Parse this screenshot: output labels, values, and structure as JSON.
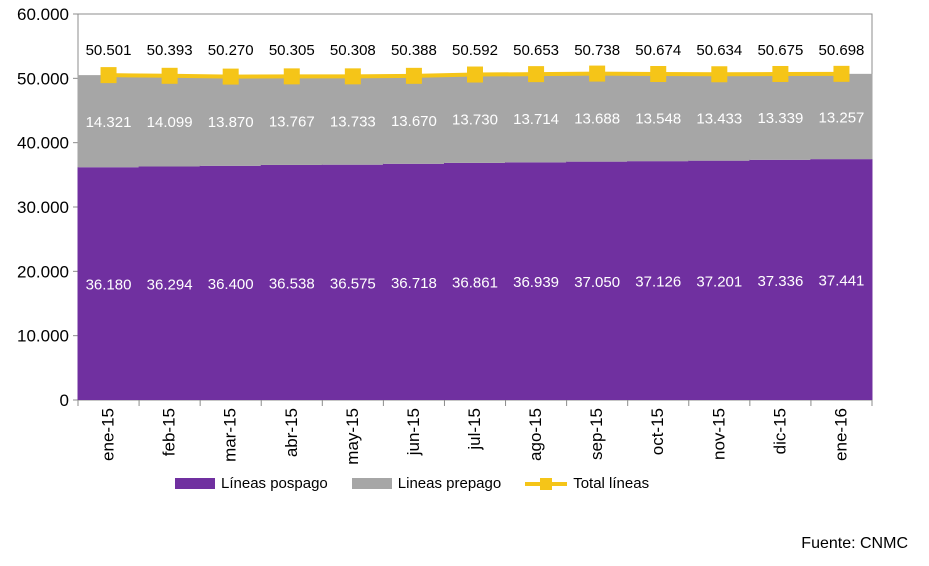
{
  "chart_data": {
    "type": "bar",
    "stacked": true,
    "categories": [
      "ene-15",
      "feb-15",
      "mar-15",
      "abr-15",
      "may-15",
      "jun-15",
      "jul-15",
      "ago-15",
      "sep-15",
      "oct-15",
      "nov-15",
      "dic-15",
      "ene-16"
    ],
    "series": [
      {
        "name": "Líneas pospago",
        "type": "bar",
        "color": "#7030A0",
        "values": [
          36180,
          36294,
          36400,
          36538,
          36575,
          36718,
          36861,
          36939,
          37050,
          37126,
          37201,
          37336,
          37441
        ],
        "labels": [
          "36.180",
          "36.294",
          "36.400",
          "36.538",
          "36.575",
          "36.718",
          "36.861",
          "36.939",
          "37.050",
          "37.126",
          "37.201",
          "37.336",
          "37.441"
        ]
      },
      {
        "name": "Lineas prepago",
        "type": "bar",
        "color": "#A6A6A6",
        "values": [
          14321,
          14099,
          13870,
          13767,
          13733,
          13670,
          13730,
          13714,
          13688,
          13548,
          13433,
          13339,
          13257
        ],
        "labels": [
          "14.321",
          "14.099",
          "13.870",
          "13.767",
          "13.733",
          "13.670",
          "13.730",
          "13.714",
          "13.688",
          "13.548",
          "13.433",
          "13.339",
          "13.257"
        ]
      },
      {
        "name": "Total líneas",
        "type": "line",
        "color": "#F5C518",
        "values": [
          50501,
          50393,
          50270,
          50305,
          50308,
          50388,
          50592,
          50653,
          50738,
          50674,
          50634,
          50675,
          50698
        ],
        "labels": [
          "50.501",
          "50.393",
          "50.270",
          "50.305",
          "50.308",
          "50.388",
          "50.592",
          "50.653",
          "50.738",
          "50.674",
          "50.634",
          "50.675",
          "50.698"
        ]
      }
    ],
    "ylim": [
      0,
      60000
    ],
    "yticks": [
      0,
      10000,
      20000,
      30000,
      40000,
      50000,
      60000
    ],
    "ytick_labels": [
      "0",
      "10.000",
      "20.000",
      "30.000",
      "40.000",
      "50.000",
      "60.000"
    ],
    "title": "",
    "xlabel": "",
    "ylabel": "",
    "grid": false,
    "legend_position": "bottom"
  },
  "legend": {
    "pospago": "Líneas pospago",
    "prepago": "Lineas prepago",
    "total": "Total líneas"
  },
  "source": "Fuente: CNMC"
}
